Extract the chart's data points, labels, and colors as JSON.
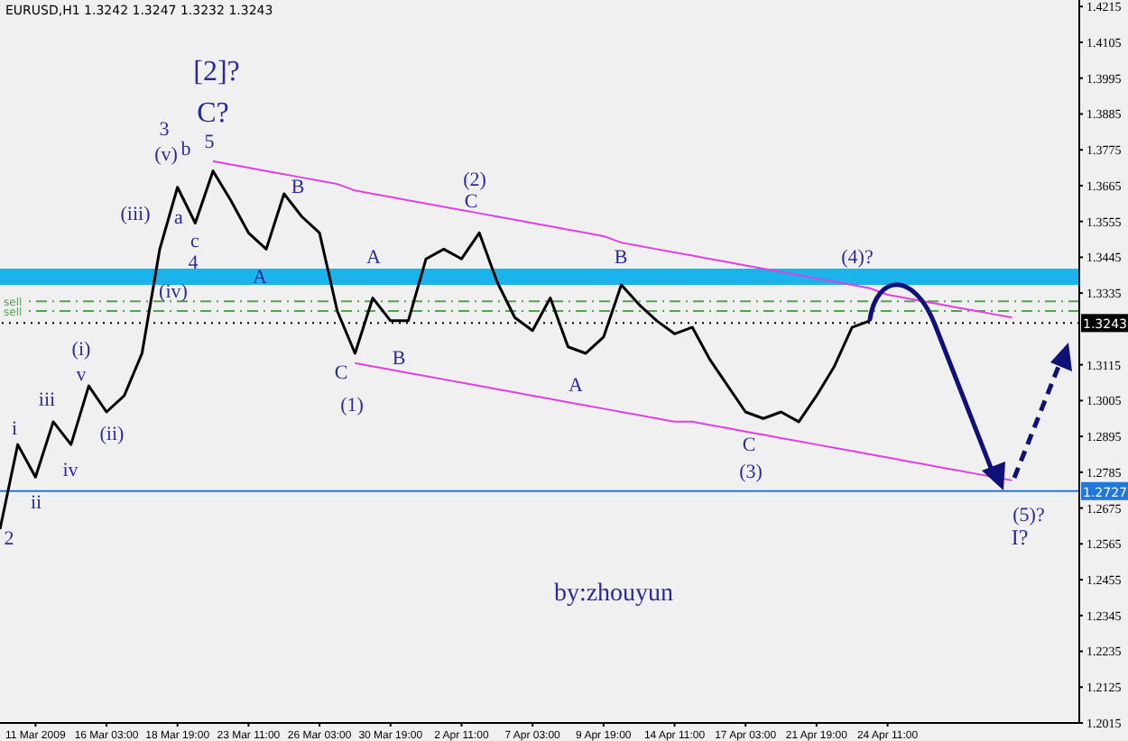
{
  "chart_data": {
    "type": "line",
    "title": "EURUSD,H1 1.3242 1.3247 1.3232 1.3243",
    "categories": [
      null,
      null,
      "11 Mar 2009",
      null,
      null,
      null,
      "16 Mar 03:00",
      null,
      null,
      null,
      "18 Mar 19:00",
      null,
      null,
      null,
      "23 Mar 11:00",
      null,
      null,
      null,
      "26 Mar 03:00",
      null,
      null,
      null,
      "30 Mar 19:00",
      null,
      null,
      null,
      "2 Apr 11:00",
      null,
      null,
      null,
      "7 Apr 03:00",
      null,
      null,
      null,
      "9 Apr 19:00",
      null,
      null,
      null,
      "14 Apr 11:00",
      null,
      null,
      null,
      "17 Apr 03:00",
      null,
      null,
      null,
      "21 Apr 19:00",
      null,
      null,
      null,
      "24 Apr 11:00",
      null,
      null,
      null,
      null,
      null,
      null,
      null,
      null,
      null,
      null,
      null,
      null
    ],
    "ylim": [
      1.2015,
      1.4235
    ],
    "yticks": [
      1.4215,
      1.4105,
      1.3995,
      1.3885,
      1.3775,
      1.3665,
      1.3555,
      1.3445,
      1.3335,
      1.3115,
      1.3005,
      1.2895,
      1.2785,
      1.2675,
      1.2565,
      1.2455,
      1.2345,
      1.2235,
      1.2125,
      1.2015
    ],
    "series": [
      {
        "color": "#000000",
        "values": [
          1.261,
          1.287,
          1.277,
          1.294,
          1.287,
          1.305,
          1.297,
          1.302,
          1.315,
          1.347,
          1.366,
          1.355,
          1.371,
          1.362,
          1.352,
          1.347,
          1.364,
          1.357,
          1.352,
          1.328,
          1.315,
          1.332,
          1.325,
          1.325,
          1.344,
          1.347,
          1.344,
          1.352,
          1.337,
          1.326,
          1.322,
          1.332,
          1.317,
          1.315,
          1.32,
          1.336,
          1.33,
          1.325,
          1.321,
          1.323,
          1.313,
          1.305,
          1.297,
          1.295,
          1.297,
          1.294,
          1.302,
          1.311,
          1.323,
          1.325,
          null,
          null,
          null,
          null,
          null,
          null,
          null,
          null,
          null,
          null,
          null,
          null,
          null
        ]
      },
      {
        "color": "#e040e0",
        "values": [
          null,
          null,
          null,
          null,
          null,
          null,
          null,
          null,
          null,
          null,
          null,
          null,
          1.374,
          1.373,
          1.372,
          1.371,
          1.37,
          1.369,
          1.368,
          1.367,
          1.365,
          1.364,
          1.363,
          1.362,
          1.361,
          1.36,
          1.359,
          1.358,
          1.357,
          1.356,
          1.355,
          1.354,
          1.353,
          1.352,
          1.351,
          1.349,
          1.348,
          1.347,
          1.346,
          1.345,
          1.344,
          1.343,
          1.342,
          1.341,
          1.34,
          1.339,
          1.338,
          1.337,
          1.336,
          1.335,
          1.333,
          1.332,
          1.331,
          1.33,
          1.329,
          1.328,
          1.327,
          1.326,
          null,
          null,
          null,
          null,
          null
        ]
      },
      {
        "color": "#e040e0",
        "values": [
          null,
          null,
          null,
          null,
          null,
          null,
          null,
          null,
          null,
          null,
          null,
          null,
          null,
          null,
          null,
          null,
          null,
          null,
          null,
          null,
          1.312,
          1.311,
          1.31,
          1.309,
          1.308,
          1.307,
          1.306,
          1.305,
          1.304,
          1.303,
          1.302,
          1.301,
          1.3,
          1.299,
          1.298,
          1.297,
          1.296,
          1.295,
          1.294,
          1.294,
          1.293,
          1.292,
          1.291,
          1.29,
          1.289,
          1.288,
          1.287,
          1.286,
          1.285,
          1.284,
          1.283,
          1.282,
          1.281,
          1.28,
          1.279,
          1.278,
          1.277,
          1.276,
          null,
          null,
          null,
          null,
          null
        ]
      }
    ],
    "ref_lines": [
      {
        "axis": "y",
        "value": 1.2727,
        "label": "1.2727",
        "color": "#2277dd"
      },
      {
        "axis": "y",
        "value": 1.3243,
        "label": "1.3243",
        "color": "#000000",
        "line_style": "dotted"
      },
      {
        "axis": "y",
        "value": 1.331,
        "label": "sell",
        "color": "#55a055",
        "line_style": "dashed"
      },
      {
        "axis": "y",
        "value": 1.328,
        "label": "sell",
        "color": "#55a055",
        "line_style": "dashed"
      }
    ],
    "bands": [
      {
        "axis": "y",
        "from": 1.336,
        "to": 1.341,
        "color": "#1ab4ea"
      }
    ],
    "annotations": [
      "[2]?",
      "C?",
      "3",
      "5",
      "(v)",
      "b",
      "(iii)",
      "a",
      "c",
      "4",
      "(iv)",
      "B",
      "A",
      "i",
      "ii",
      "iii",
      "iv",
      "v",
      "(i)",
      "(ii)",
      "(1)",
      "C",
      "A",
      "B",
      "(2)",
      "C",
      "B",
      "A",
      "C",
      "(3)",
      "(4)?",
      "(5)?",
      "I?",
      "2",
      "by:zhouyun"
    ]
  }
}
